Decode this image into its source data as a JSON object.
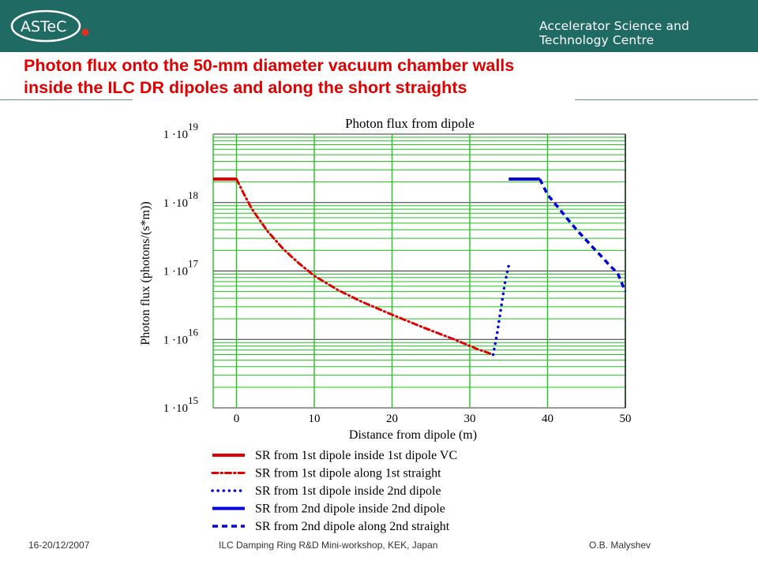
{
  "header": {
    "logo_text": "ASTeC",
    "organization": "Accelerator Science and Technology Centre"
  },
  "slide": {
    "title_line1": "Photon flux onto the 50-mm diameter vacuum chamber walls",
    "title_line2": "inside the ILC DR dipoles and along the short straights"
  },
  "footer": {
    "date": "16-20/12/2007",
    "event": "ILC Damping Ring R&D Mini-workshop, KEK, Japan",
    "author": "O.B. Malyshev"
  },
  "colors": {
    "header_bg": "#1f6a63",
    "title": "#e00000",
    "grid": "#22c222",
    "red_series": "#e00000",
    "blue_series": "#0000dd"
  },
  "chart_data": {
    "type": "line",
    "title": "Photon flux from dipole",
    "xlabel": "Distance from dipole (m)",
    "ylabel": "Photon flux (photons/(s*m))",
    "xlim": [
      -3,
      50
    ],
    "ylim": [
      1000000000000000.0,
      1e+19
    ],
    "yscale": "log",
    "grid": true,
    "legend_position": "bottom",
    "x_ticks": [
      0,
      10,
      20,
      30,
      40,
      50
    ],
    "y_ticks": [
      {
        "value": 1000000000000000.0,
        "base": "1 ·10",
        "exp": "15"
      },
      {
        "value": 1e+16,
        "base": "1 ·10",
        "exp": "16"
      },
      {
        "value": 1e+17,
        "base": "1 ·10",
        "exp": "17"
      },
      {
        "value": 1e+18,
        "base": "1 ·10",
        "exp": "18"
      },
      {
        "value": 1e+19,
        "base": "1 ·10",
        "exp": "19"
      }
    ],
    "series": [
      {
        "name": "SR from 1st dipole inside 1st dipole VC",
        "color": "#e00000",
        "style": "solid",
        "x": [
          -3,
          0
        ],
        "y": [
          2.2e+18,
          2.2e+18
        ]
      },
      {
        "name": "SR from 1st dipole along 1st straight",
        "color": "#e00000",
        "style": "dashdot",
        "x": [
          0,
          1,
          2,
          4,
          6,
          8,
          10,
          13,
          16,
          20,
          24,
          28,
          31,
          33
        ],
        "y": [
          2.2e+18,
          1.3e+18,
          8e+17,
          3.8e+17,
          2.1e+17,
          1.3e+17,
          8.5e+16,
          5.3e+16,
          3.6e+16,
          2.3e+16,
          1.5e+16,
          1e+16,
          7200000000000000.0,
          6000000000000000.0
        ]
      },
      {
        "name": "SR from 1st dipole inside 2nd dipole",
        "color": "#0000dd",
        "style": "dotted",
        "x": [
          33,
          33.5,
          34,
          34.5,
          35
        ],
        "y": [
          6000000000000000.0,
          1.2e+16,
          2.8e+16,
          6.5e+16,
          1.2e+17
        ]
      },
      {
        "name": "SR from 2nd dipole inside 2nd dipole",
        "color": "#0000dd",
        "style": "solid",
        "x": [
          35,
          39
        ],
        "y": [
          2.2e+18,
          2.2e+18
        ]
      },
      {
        "name": "SR from 2nd dipole along 2nd straight",
        "color": "#0000dd",
        "style": "dashed",
        "x": [
          39,
          40,
          41,
          42,
          43,
          44,
          45,
          46,
          47,
          48,
          49,
          50
        ],
        "y": [
          2.2e+18,
          1.3e+18,
          9.5e+17,
          6.9e+17,
          5e+17,
          3.7e+17,
          2.8e+17,
          2.1e+17,
          1.6e+17,
          1.2e+17,
          9.3e+16,
          5e+16
        ]
      }
    ]
  }
}
